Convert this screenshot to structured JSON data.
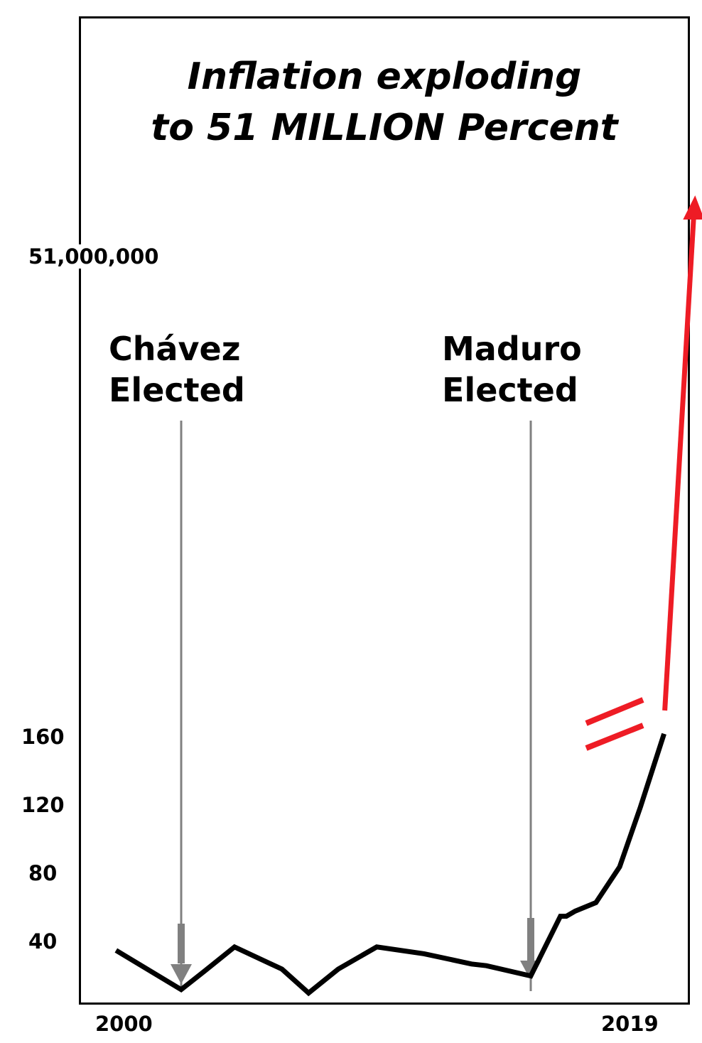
{
  "chart_data": {
    "type": "line",
    "title_lines": [
      "Inflation exploding",
      "to 51 MILLION Percent"
    ],
    "x_tick_labels": [
      "2000",
      "2019"
    ],
    "x_range": [
      2000,
      2019
    ],
    "y_tick_labels": [
      "40",
      "80",
      "120",
      "160",
      "51,000,000"
    ],
    "y_axis": {
      "linear_range": [
        0,
        190
      ],
      "break_to": 51000000,
      "scale": "broken"
    },
    "series": [
      {
        "color": "#000000",
        "x": [
          1999.0,
          2001.2,
          2002.0,
          2003.0,
          2004.6,
          2005.5,
          2006.5,
          2007.8,
          2009.4,
          2011.0,
          2011.5,
          2013.0,
          2014.0,
          2014.2,
          2014.5,
          2015.2,
          2016.0,
          2016.7,
          2017.5
        ],
        "y": [
          36,
          13,
          24,
          38,
          25,
          11,
          25,
          38,
          34,
          28,
          27,
          21,
          56,
          56,
          59,
          64,
          85,
          120,
          163
        ]
      },
      {
        "color": "#ee1c25",
        "x": [
          2017.5,
          2018.5
        ],
        "y": [
          175,
          51000000
        ]
      }
    ],
    "annotations": [
      {
        "lines": [
          "Chávez",
          "Elected"
        ],
        "x": 2001.2
      },
      {
        "lines": [
          "Maduro",
          "Elected"
        ],
        "x": 2013.0
      }
    ],
    "colors": {
      "main_line": "#000000",
      "explosion": "#ee1c25",
      "marker": "#808080",
      "frame": "#000000"
    },
    "grid": false,
    "legend": "none"
  }
}
